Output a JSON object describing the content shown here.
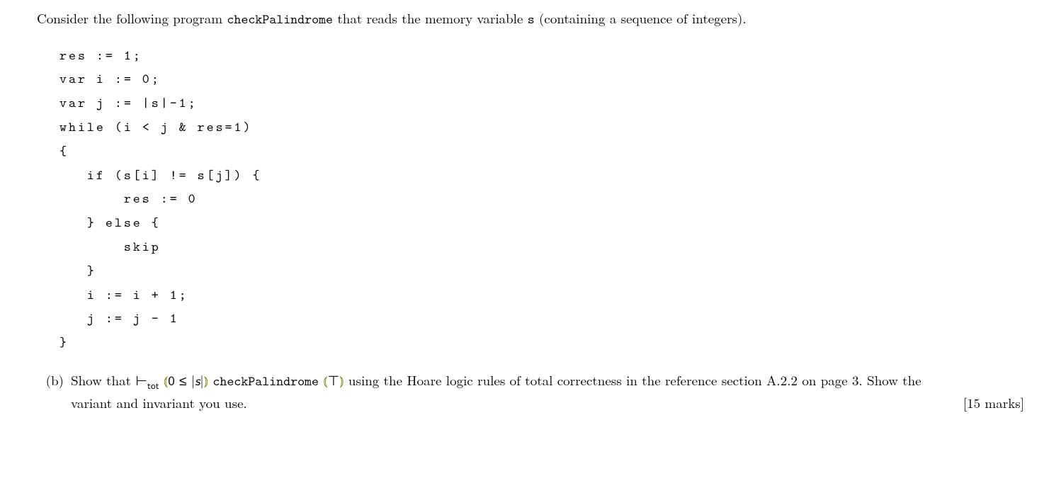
{
  "intro": {
    "textA": "Consider the following program ",
    "prog": "checkPalindrome",
    "textB": " that reads the memory variable ",
    "var": "s",
    "textC": " (containing a sequence of integers)."
  },
  "code": "res := 1;\nvar i := 0;\nvar j := |s|-1;\nwhile (i < j & res=1)\n{\n   if (s[i] != s[j]) {\n       res := 0\n   } else {\n       skip\n   }\n   i := i + 1;\n   j := j - 1\n}",
  "question": {
    "label": "(b)",
    "t1": "Show that ",
    "turnstile": "⊢",
    "tot": "tot",
    "lp": " ⦅",
    "pre_a": "0 ≤ |",
    "pre_s": "s",
    "pre_b": "|",
    "rp": "⦆ ",
    "prog": "checkPalindrome",
    "lp2": " ⦅",
    "post": "⊤",
    "rp2": "⦆ ",
    "t2": "using the Hoare logic rules of total correctness in the reference section A.2.2 on page 3. Show the variant and invariant you use.",
    "marks": "[15 marks]"
  },
  "colors": {
    "accent": "#808000",
    "text": "#000000",
    "background": "#ffffff"
  }
}
